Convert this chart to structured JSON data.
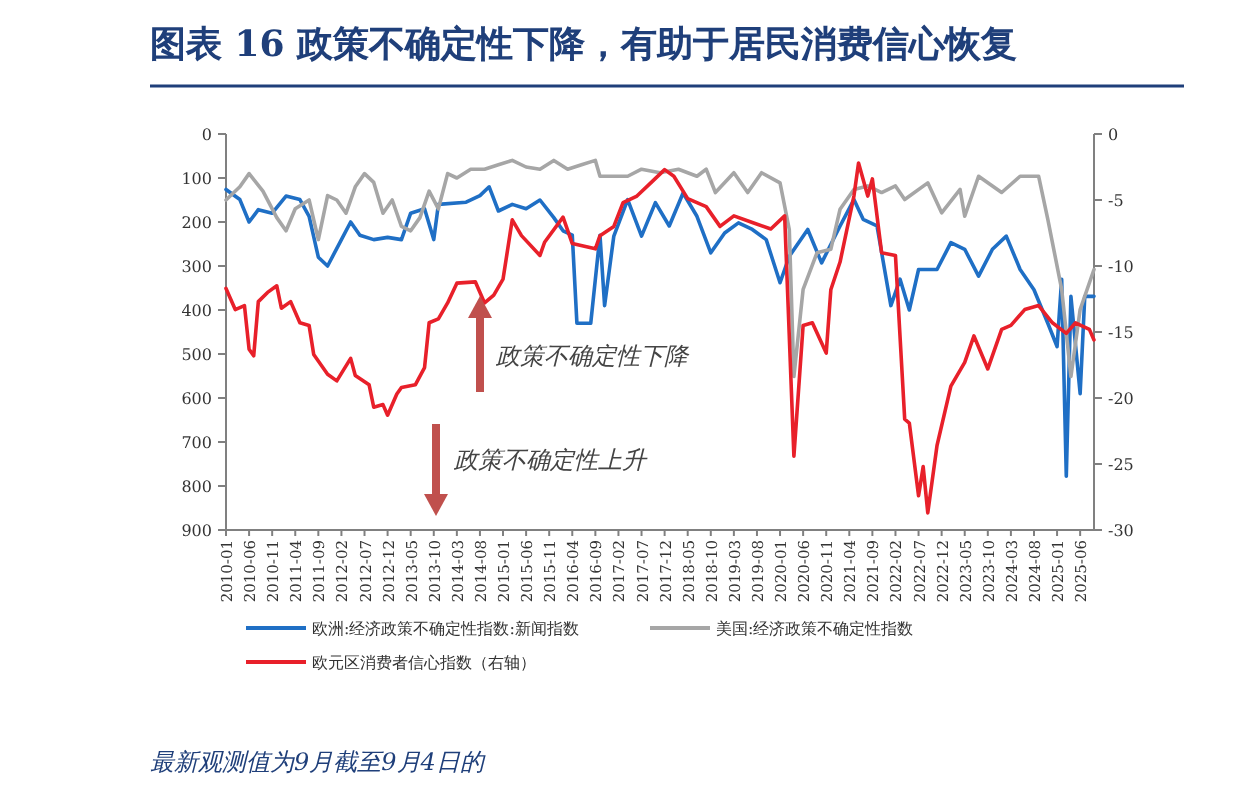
{
  "chart_data": {
    "type": "line",
    "title": "图表 16 政策不确定性下降，有助于居民消费信心恢复",
    "annotations": [
      "政策不确定性下降",
      "政策不确定性上升",
      "最新观测值为9月截至9月4日的"
    ],
    "xlim": [
      "2010-01",
      "2025-09"
    ],
    "xticks": [
      "2010-01",
      "2010-06",
      "2010-11",
      "2011-04",
      "2011-09",
      "2012-02",
      "2012-07",
      "2012-12",
      "2013-05",
      "2013-10",
      "2014-03",
      "2014-08",
      "2015-01",
      "2015-06",
      "2015-11",
      "2016-04",
      "2016-09",
      "2017-02",
      "2017-07",
      "2017-12",
      "2018-05",
      "2018-10",
      "2019-03",
      "2019-08",
      "2020-01",
      "2020-06",
      "2020-11",
      "2021-04",
      "2021-09",
      "2022-02",
      "2022-07",
      "2022-12",
      "2023-05",
      "2023-10",
      "2024-03",
      "2024-08",
      "2025-01",
      "2025-06"
    ],
    "ylim": [
      900,
      0
    ],
    "yticks": [
      0,
      100,
      200,
      300,
      400,
      500,
      600,
      700,
      800,
      900
    ],
    "y2lim": [
      -30,
      0
    ],
    "y2ticks": [
      0,
      -5,
      -10,
      -15,
      -20,
      -25,
      -30
    ],
    "legend": "bottom",
    "series": [
      {
        "name": "欧洲:经济政策不确定性指数:新闻指数",
        "color": "#1f6fc5",
        "x": [
          "2010-01",
          "2010-04",
          "2010-06",
          "2010-08",
          "2010-11",
          "2011-02",
          "2011-05",
          "2011-07",
          "2011-09",
          "2011-11",
          "2012-02",
          "2012-04",
          "2012-06",
          "2012-09",
          "2012-12",
          "2013-03",
          "2013-05",
          "2013-08",
          "2013-10",
          "2013-11",
          "2014-05",
          "2014-08",
          "2014-10",
          "2014-12",
          "2015-03",
          "2015-06",
          "2015-09",
          "2015-12",
          "2016-02",
          "2016-04",
          "2016-05",
          "2016-08",
          "2016-10",
          "2016-11",
          "2017-01",
          "2017-04",
          "2017-07",
          "2017-10",
          "2018-01",
          "2018-04",
          "2018-07",
          "2018-10",
          "2019-01",
          "2019-04",
          "2019-07",
          "2019-10",
          "2020-01",
          "2020-03",
          "2020-07",
          "2020-10",
          "2021-02",
          "2021-05",
          "2021-07",
          "2021-10",
          "2022-01",
          "2022-03",
          "2022-05",
          "2022-07",
          "2022-11",
          "2023-02",
          "2023-05",
          "2023-08",
          "2023-11",
          "2024-02",
          "2024-05",
          "2024-08",
          "2024-11",
          "2025-01",
          "2025-02",
          "2025-03",
          "2025-04",
          "2025-06",
          "2025-07",
          "2025-09"
        ],
        "values": [
          126,
          149,
          200,
          172,
          180,
          141,
          149,
          187,
          280,
          300,
          240,
          200,
          230,
          240,
          235,
          240,
          180,
          170,
          240,
          160,
          155,
          140,
          120,
          175,
          160,
          170,
          150,
          190,
          220,
          230,
          430,
          430,
          230,
          390,
          232,
          149,
          232,
          156,
          209,
          134,
          187,
          270,
          225,
          202,
          217,
          240,
          338,
          278,
          217,
          293,
          209,
          149,
          194,
          209,
          390,
          330,
          400,
          308,
          308,
          247,
          262,
          323,
          262,
          232,
          308,
          354,
          430,
          483,
          330,
          778,
          369,
          590,
          369,
          369
        ]
      },
      {
        "name": "美国:经济政策不确定性指数",
        "color": "#a6a6a6",
        "x": [
          "2010-01",
          "2010-04",
          "2010-06",
          "2010-09",
          "2010-12",
          "2011-02",
          "2011-04",
          "2011-07",
          "2011-09",
          "2011-11",
          "2012-01",
          "2012-03",
          "2012-05",
          "2012-07",
          "2012-09",
          "2012-11",
          "2013-01",
          "2013-03",
          "2013-05",
          "2013-07",
          "2013-09",
          "2013-11",
          "2014-01",
          "2014-03",
          "2014-06",
          "2014-09",
          "2014-12",
          "2015-03",
          "2015-06",
          "2015-09",
          "2015-12",
          "2016-03",
          "2016-06",
          "2016-09",
          "2016-10",
          "2017-04",
          "2017-07",
          "2017-11",
          "2018-03",
          "2018-07",
          "2018-09",
          "2018-11",
          "2019-03",
          "2019-06",
          "2019-09",
          "2020-01",
          "2020-03",
          "2020-04",
          "2020-06",
          "2020-09",
          "2020-12",
          "2021-02",
          "2021-05",
          "2021-08",
          "2021-11",
          "2022-02",
          "2022-04",
          "2022-09",
          "2022-12",
          "2023-04",
          "2023-05",
          "2023-08",
          "2024-01",
          "2024-05",
          "2024-09",
          "2024-11",
          "2025-02",
          "2025-04",
          "2025-06",
          "2025-09"
        ],
        "values": [
          150,
          120,
          90,
          130,
          190,
          220,
          170,
          150,
          240,
          140,
          150,
          180,
          120,
          90,
          110,
          180,
          150,
          210,
          220,
          190,
          130,
          170,
          90,
          100,
          80,
          80,
          70,
          60,
          75,
          80,
          60,
          80,
          70,
          60,
          96,
          96,
          80,
          88,
          80,
          96,
          80,
          133,
          88,
          133,
          88,
          111,
          217,
          551,
          353,
          270,
          262,
          171,
          126,
          118,
          133,
          118,
          149,
          111,
          179,
          126,
          187,
          96,
          133,
          96,
          96,
          194,
          353,
          551,
          399,
          308
        ]
      },
      {
        "name": "欧元区消费者信心指数（右轴）",
        "color": "#e8202a",
        "axis": "y2",
        "x": [
          "2010-01",
          "2010-03",
          "2010-05",
          "2010-06",
          "2010-07",
          "2010-08",
          "2010-10",
          "2010-12",
          "2011-01",
          "2011-03",
          "2011-05",
          "2011-07",
          "2011-08",
          "2011-11",
          "2012-01",
          "2012-04",
          "2012-05",
          "2012-08",
          "2012-09",
          "2012-11",
          "2012-12",
          "2013-02",
          "2013-03",
          "2013-06",
          "2013-08",
          "2013-09",
          "2013-11",
          "2014-01",
          "2014-03",
          "2014-07",
          "2014-09",
          "2014-11",
          "2015-01",
          "2015-03",
          "2015-05",
          "2015-09",
          "2015-10",
          "2016-02",
          "2016-04",
          "2016-09",
          "2016-10",
          "2017-01",
          "2017-03",
          "2017-06",
          "2017-09",
          "2017-12",
          "2018-02",
          "2018-05",
          "2018-09",
          "2018-12",
          "2019-03",
          "2019-07",
          "2019-11",
          "2020-02",
          "2020-04",
          "2020-06",
          "2020-08",
          "2020-11",
          "2020-12",
          "2021-02",
          "2021-05",
          "2021-06",
          "2021-08",
          "2021-09",
          "2021-11",
          "2022-02",
          "2022-04",
          "2022-05",
          "2022-07",
          "2022-08",
          "2022-09",
          "2022-11",
          "2023-02",
          "2023-05",
          "2023-07",
          "2023-10",
          "2024-01",
          "2024-03",
          "2024-06",
          "2024-09",
          "2024-12",
          "2025-03",
          "2025-05",
          "2025-08",
          "2025-09"
        ],
        "values": [
          -11.7,
          -13.3,
          -13.0,
          -16.3,
          -16.8,
          -12.7,
          -12.0,
          -11.5,
          -13.2,
          -12.7,
          -14.3,
          -14.5,
          -16.7,
          -18.2,
          -18.7,
          -17.0,
          -18.3,
          -19.0,
          -20.7,
          -20.5,
          -21.3,
          -19.7,
          -19.2,
          -19.0,
          -17.7,
          -14.3,
          -14.0,
          -12.8,
          -11.3,
          -11.2,
          -12.8,
          -12.2,
          -11.0,
          -6.5,
          -7.7,
          -9.2,
          -8.2,
          -6.3,
          -8.3,
          -8.7,
          -7.7,
          -7.0,
          -5.2,
          -4.7,
          -3.7,
          -2.7,
          -3.2,
          -4.9,
          -5.5,
          -7.0,
          -6.2,
          -6.7,
          -7.2,
          -6.2,
          -24.4,
          -14.5,
          -14.3,
          -16.6,
          -11.8,
          -9.7,
          -4.7,
          -2.2,
          -4.7,
          -3.4,
          -9.0,
          -9.2,
          -21.6,
          -21.9,
          -27.4,
          -25.2,
          -28.7,
          -23.6,
          -19.1,
          -17.3,
          -15.3,
          -17.8,
          -14.8,
          -14.5,
          -13.3,
          -13.0,
          -14.3,
          -15.1,
          -14.3,
          -14.8,
          -15.6
        ]
      }
    ]
  }
}
